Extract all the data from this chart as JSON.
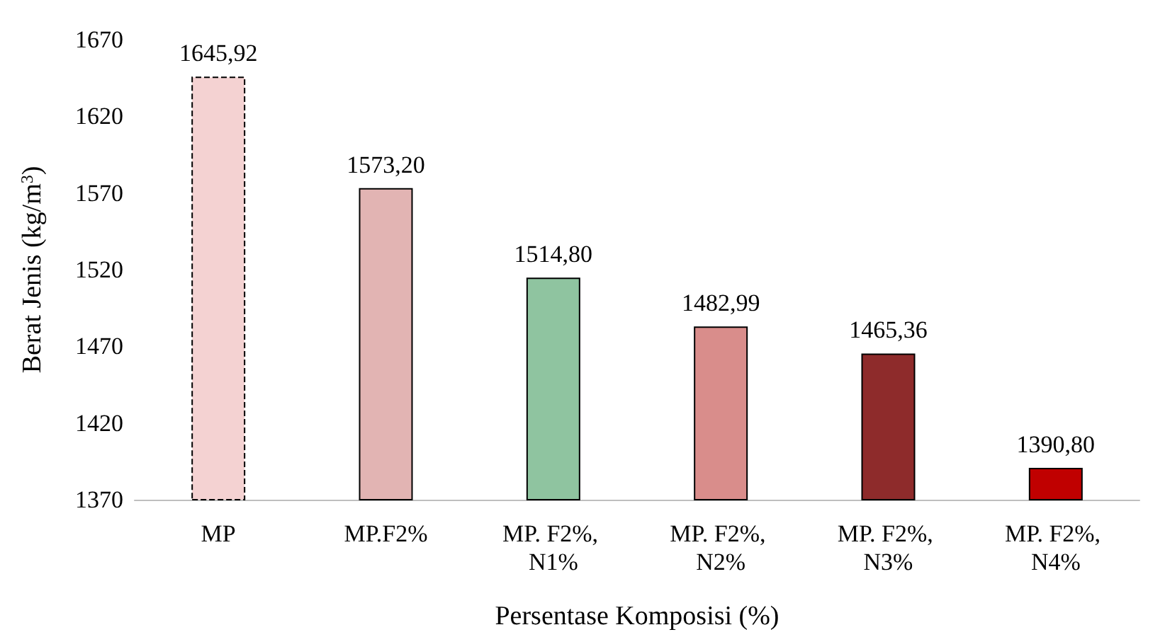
{
  "chart_data": {
    "type": "bar",
    "xlabel": "Persentase Komposisi (%)",
    "ylabel": "Berat Jenis (kg/m$^{3}$)",
    "categories": [
      "MP",
      "MP.F2%",
      "MP. F2%, N1%",
      "MP. F2%, N2%",
      "MP. F2%, N3%",
      "MP. F2%, N4%"
    ],
    "values": [
      1645.92,
      1573.2,
      1514.8,
      1482.99,
      1465.36,
      1390.8
    ],
    "value_labels": [
      "1645,92",
      "1573,20",
      "1514,80",
      "1482,99",
      "1465,36",
      "1390,80"
    ],
    "colors": [
      "#f4d2d2",
      "#e2b4b3",
      "#8fc4a0",
      "#d98d8b",
      "#8e2b2b",
      "#c00000"
    ],
    "ylim": [
      1370,
      1670
    ],
    "yticks": [
      1370,
      1420,
      1470,
      1520,
      1570,
      1620,
      1670
    ],
    "grid": false
  }
}
